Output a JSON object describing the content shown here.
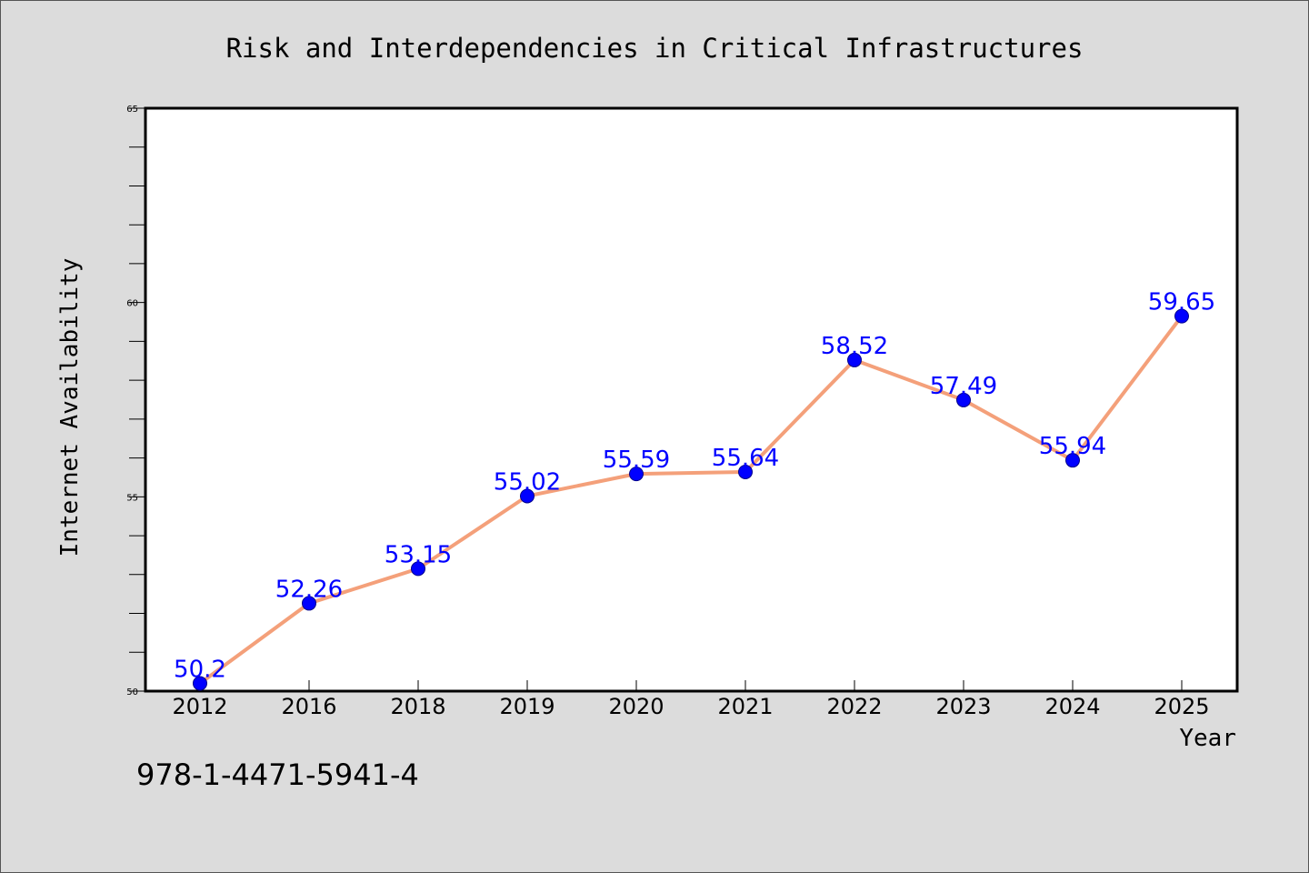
{
  "chart_data": {
    "type": "line",
    "title": "Risk and Interdependencies in Critical Infrastructures",
    "xlabel": "Year",
    "ylabel": "Internet Availability",
    "categories": [
      "2012",
      "2016",
      "2018",
      "2019",
      "2020",
      "2021",
      "2022",
      "2023",
      "2024",
      "2025"
    ],
    "series": [
      {
        "values": [
          50.2,
          52.26,
          53.15,
          55.02,
          55.59,
          55.64,
          58.52,
          57.49,
          55.94,
          59.65
        ],
        "labels": [
          "50.2",
          "52.26",
          "53.15",
          "55.02",
          "55.59",
          "55.64",
          "58.52",
          "57.49",
          "55.94",
          "59.65"
        ]
      }
    ],
    "ylim": [
      50,
      65
    ],
    "yticks": [
      "50",
      "55",
      "60",
      "65"
    ],
    "grid": false,
    "colors": {
      "line": "#f4a07a",
      "marker": "#0000ff",
      "label": "#0000ff",
      "plot_bg": "#ffffff",
      "page_bg": "#dcdcdc"
    }
  },
  "footer": {
    "isbn": "978-1-4471-5941-4"
  }
}
